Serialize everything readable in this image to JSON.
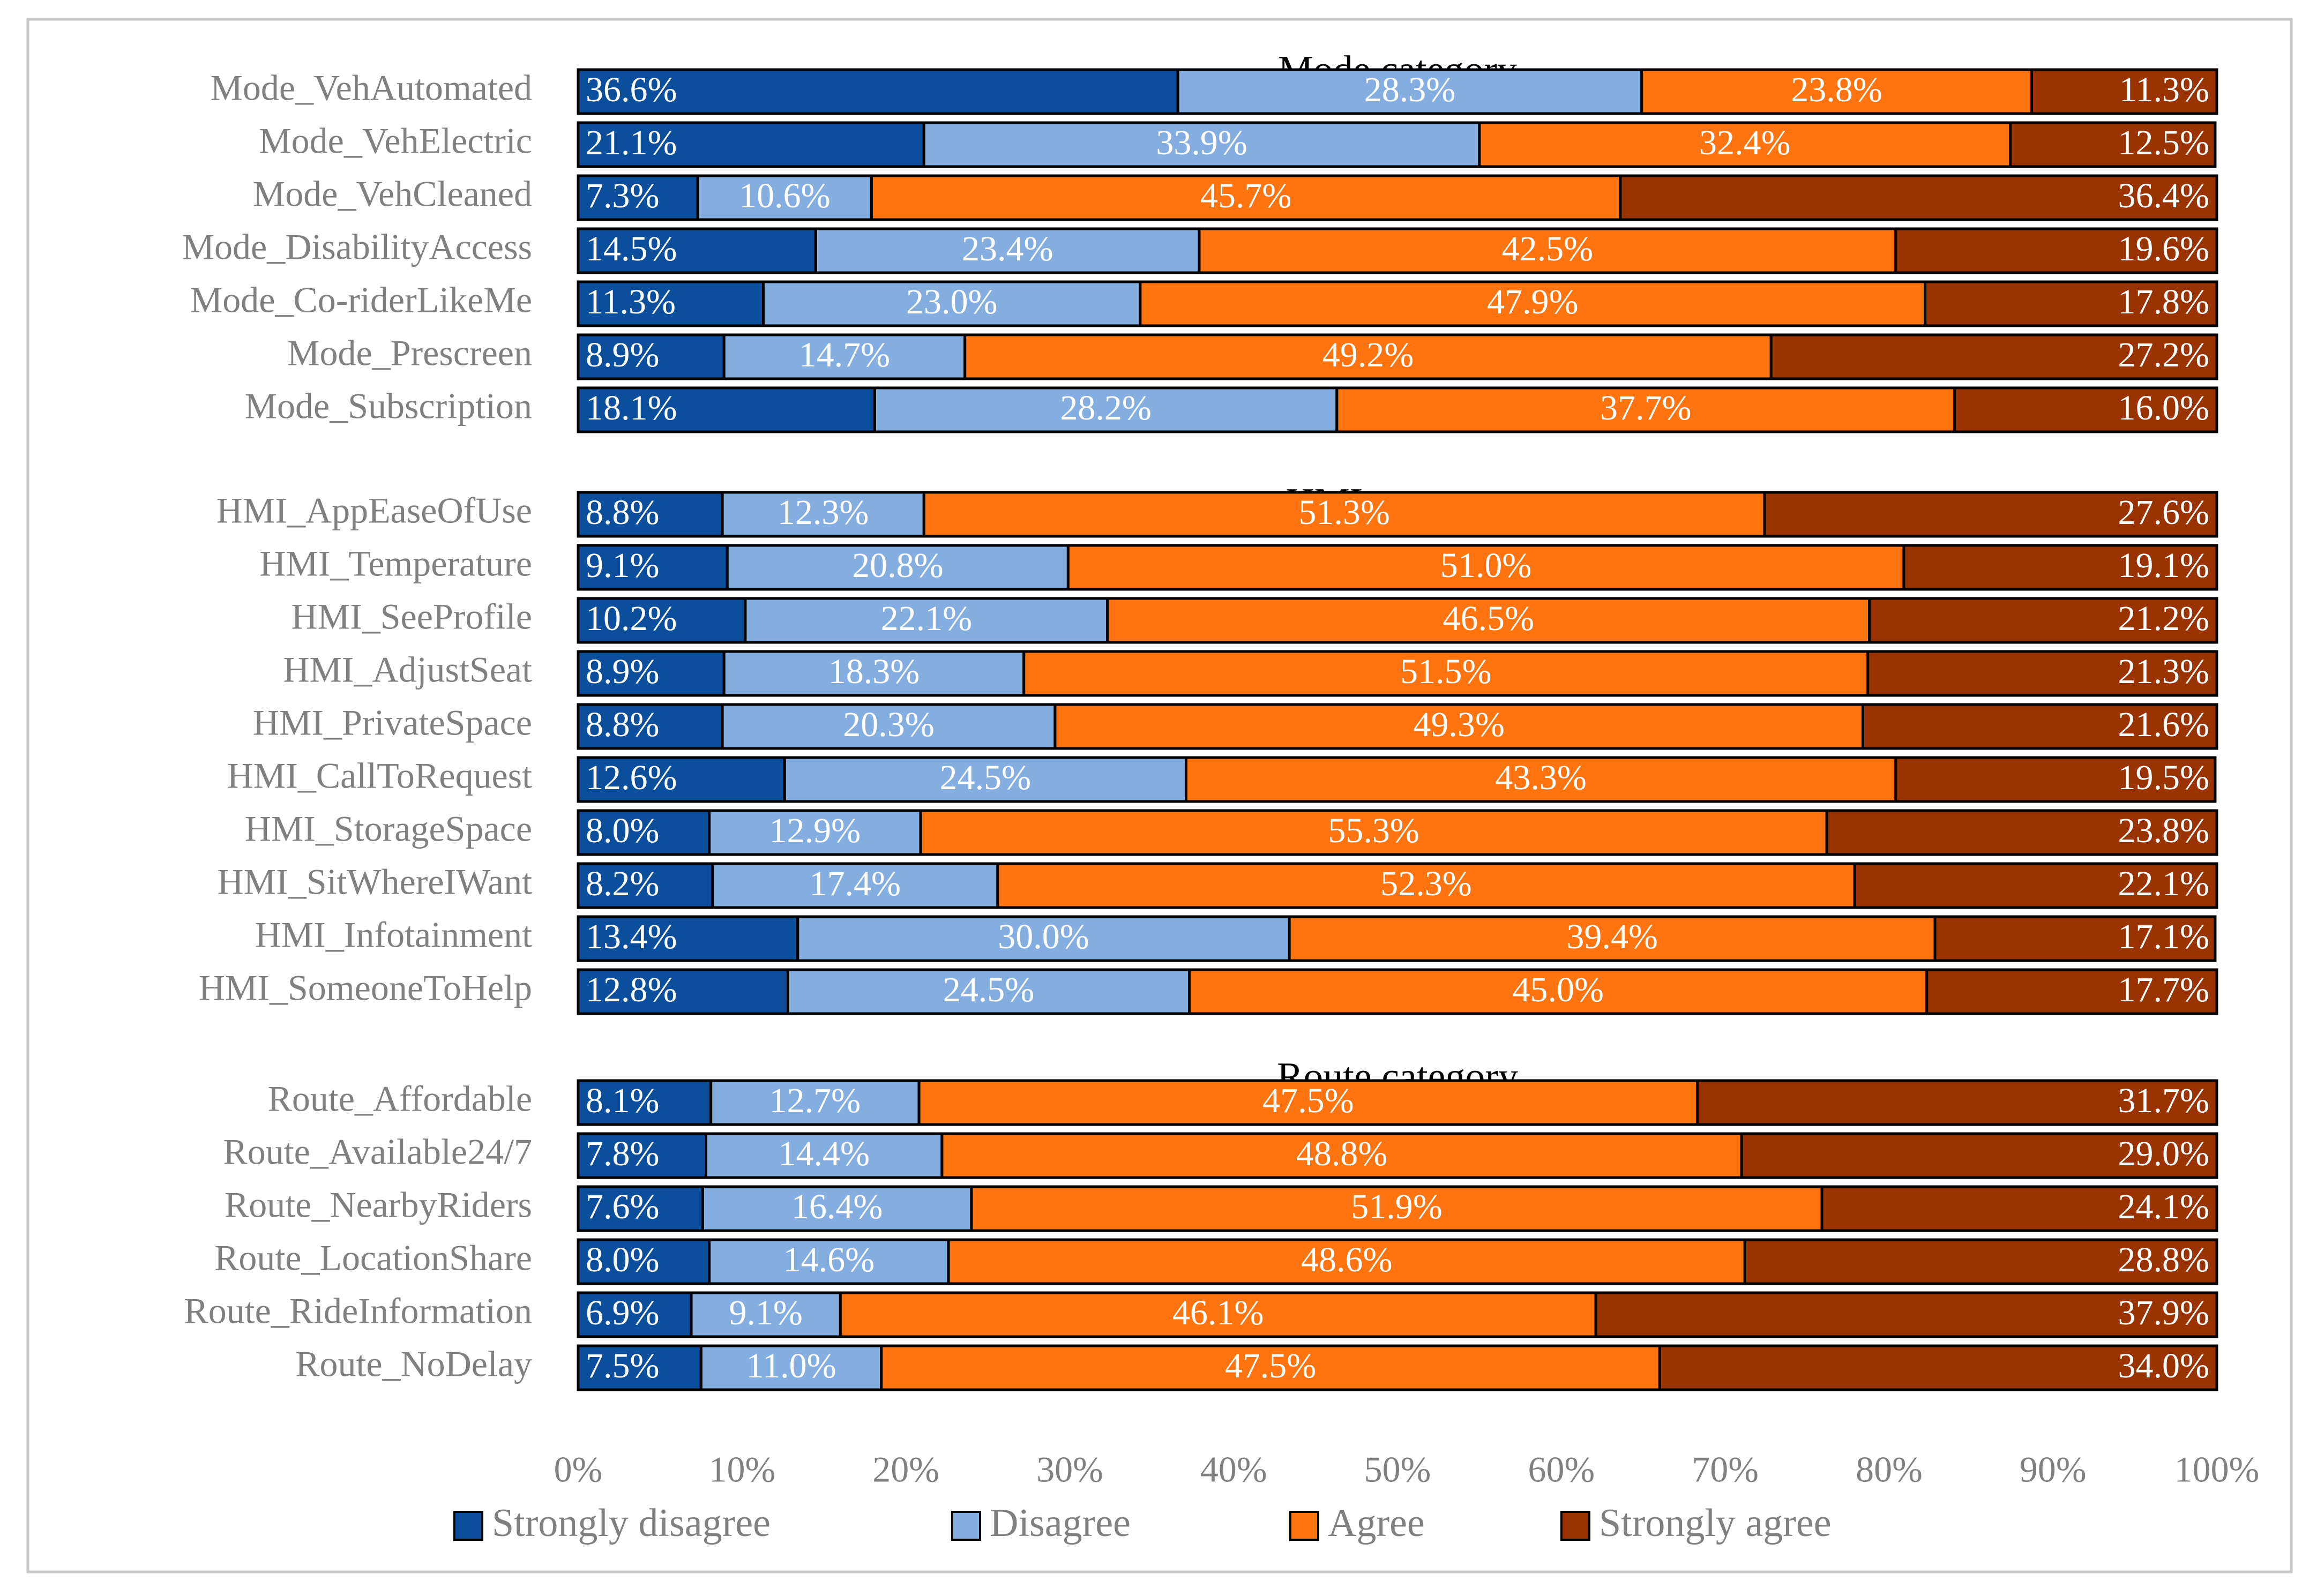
{
  "chart_data": {
    "type": "bar",
    "stacked": "percent",
    "orientation": "horizontal",
    "xlim": [
      0,
      100
    ],
    "x_ticks": [
      "0%",
      "10%",
      "20%",
      "30%",
      "40%",
      "50%",
      "60%",
      "70%",
      "80%",
      "90%",
      "100%"
    ],
    "legend_position": "bottom",
    "series": [
      {
        "name": "Strongly disagree",
        "color": "#0B4F9C"
      },
      {
        "name": "Disagree",
        "color": "#85AEE0"
      },
      {
        "name": "Agree",
        "color": "#FF740E"
      },
      {
        "name": "Strongly agree",
        "color": "#993300"
      }
    ],
    "groups": [
      {
        "title": "Mode category",
        "rows": [
          {
            "label": "Mode_VehAutomated",
            "values": [
              36.6,
              28.3,
              23.8,
              11.3
            ],
            "texts": [
              "36.6%",
              "28.3%",
              "23.8%",
              "11.3%"
            ]
          },
          {
            "label": "Mode_VehElectric",
            "values": [
              21.1,
              33.9,
              32.4,
              12.5
            ],
            "texts": [
              "21.1%",
              "33.9%",
              "32.4%",
              "12.5%"
            ]
          },
          {
            "label": "Mode_VehCleaned",
            "values": [
              7.3,
              10.6,
              45.7,
              36.4
            ],
            "texts": [
              "7.3%",
              "10.6%",
              "45.7%",
              "36.4%"
            ]
          },
          {
            "label": "Mode_DisabilityAccess",
            "values": [
              14.5,
              23.4,
              42.5,
              19.6
            ],
            "texts": [
              "14.5%",
              "23.4%",
              "42.5%",
              "19.6%"
            ]
          },
          {
            "label": "Mode_Co-riderLikeMe",
            "values": [
              11.3,
              23.0,
              47.9,
              17.8
            ],
            "texts": [
              "11.3%",
              "23.0%",
              "47.9%",
              "17.8%"
            ]
          },
          {
            "label": "Mode_Prescreen",
            "values": [
              8.9,
              14.7,
              49.2,
              27.2
            ],
            "texts": [
              "8.9%",
              "14.7%",
              "49.2%",
              "27.2%"
            ]
          },
          {
            "label": "Mode_Subscription",
            "values": [
              18.1,
              28.2,
              37.7,
              16.0
            ],
            "texts": [
              "18.1%",
              "28.2%",
              "37.7%",
              "16.0%"
            ]
          }
        ]
      },
      {
        "title": "HMI category",
        "rows": [
          {
            "label": "HMI_AppEaseOfUse",
            "values": [
              8.8,
              12.3,
              51.3,
              27.6
            ],
            "texts": [
              "8.8%",
              "12.3%",
              "51.3%",
              "27.6%"
            ]
          },
          {
            "label": "HMI_Temperature",
            "values": [
              9.1,
              20.8,
              51.0,
              19.1
            ],
            "texts": [
              "9.1%",
              "20.8%",
              "51.0%",
              "19.1%"
            ]
          },
          {
            "label": "HMI_SeeProfile",
            "values": [
              10.2,
              22.1,
              46.5,
              21.2
            ],
            "texts": [
              "10.2%",
              "22.1%",
              "46.5%",
              "21.2%"
            ]
          },
          {
            "label": "HMI_AdjustSeat",
            "values": [
              8.9,
              18.3,
              51.5,
              21.3
            ],
            "texts": [
              "8.9%",
              "18.3%",
              "51.5%",
              "21.3%"
            ]
          },
          {
            "label": "HMI_PrivateSpace",
            "values": [
              8.8,
              20.3,
              49.3,
              21.6
            ],
            "texts": [
              "8.8%",
              "20.3%",
              "49.3%",
              "21.6%"
            ]
          },
          {
            "label": "HMI_CallToRequest",
            "values": [
              12.6,
              24.5,
              43.3,
              19.5
            ],
            "texts": [
              "12.6%",
              "24.5%",
              "43.3%",
              "19.5%"
            ]
          },
          {
            "label": "HMI_StorageSpace",
            "values": [
              8.0,
              12.9,
              55.3,
              23.8
            ],
            "texts": [
              "8.0%",
              "12.9%",
              "55.3%",
              "23.8%"
            ]
          },
          {
            "label": "HMI_SitWhereIWant",
            "values": [
              8.2,
              17.4,
              52.3,
              22.1
            ],
            "texts": [
              "8.2%",
              "17.4%",
              "52.3%",
              "22.1%"
            ]
          },
          {
            "label": "HMI_Infotainment",
            "values": [
              13.4,
              30.0,
              39.4,
              17.1
            ],
            "texts": [
              "13.4%",
              "30.0%",
              "39.4%",
              "17.1%"
            ]
          },
          {
            "label": "HMI_SomeoneToHelp",
            "values": [
              12.8,
              24.5,
              45.0,
              17.7
            ],
            "texts": [
              "12.8%",
              "24.5%",
              "45.0%",
              "17.7%"
            ]
          }
        ]
      },
      {
        "title": "Route category",
        "rows": [
          {
            "label": "Route_Affordable",
            "values": [
              8.1,
              12.7,
              47.5,
              31.7
            ],
            "texts": [
              "8.1%",
              "12.7%",
              "47.5%",
              "31.7%"
            ]
          },
          {
            "label": "Route_Available24/7",
            "values": [
              7.8,
              14.4,
              48.8,
              29.0
            ],
            "texts": [
              "7.8%",
              "14.4%",
              "48.8%",
              "29.0%"
            ]
          },
          {
            "label": "Route_NearbyRiders",
            "values": [
              7.6,
              16.4,
              51.9,
              24.1
            ],
            "texts": [
              "7.6%",
              "16.4%",
              "51.9%",
              "24.1%"
            ]
          },
          {
            "label": "Route_LocationShare",
            "values": [
              8.0,
              14.6,
              48.6,
              28.8
            ],
            "texts": [
              "8.0%",
              "14.6%",
              "48.6%",
              "28.8%"
            ]
          },
          {
            "label": "Route_RideInformation",
            "values": [
              6.9,
              9.1,
              46.1,
              37.9
            ],
            "texts": [
              "6.9%",
              "9.1%",
              "46.1%",
              "37.9%"
            ]
          },
          {
            "label": "Route_NoDelay",
            "values": [
              7.5,
              11.0,
              47.5,
              34.0
            ],
            "texts": [
              "7.5%",
              "11.0%",
              "47.5%",
              "34.0%"
            ]
          }
        ]
      }
    ]
  }
}
